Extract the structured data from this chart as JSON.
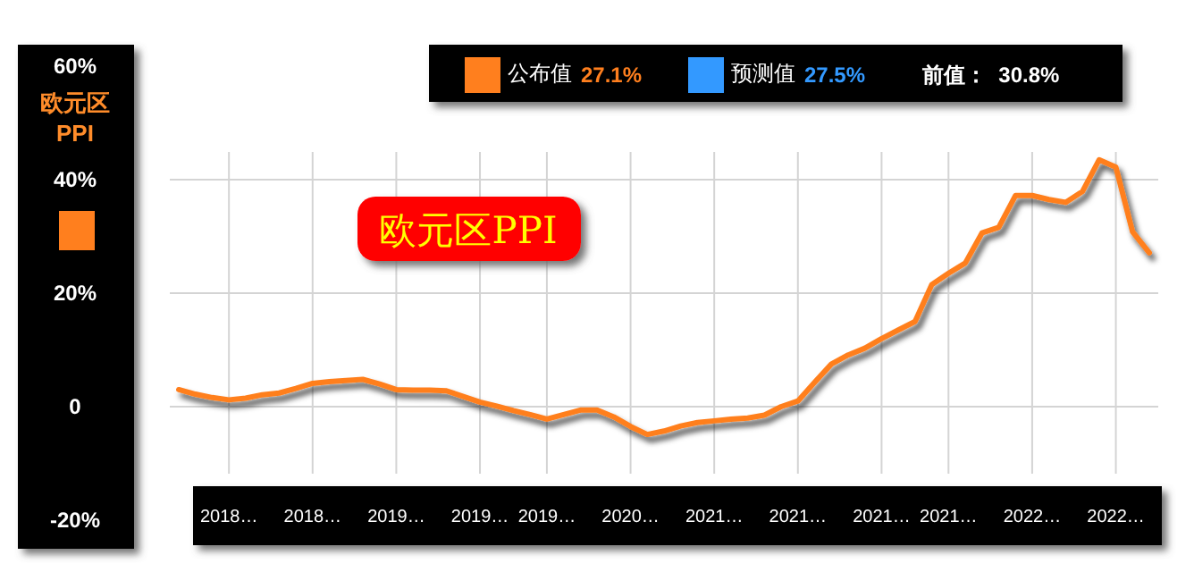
{
  "chart_data": {
    "type": "line",
    "title": "欧元区PPI",
    "ylabel": "欧元区 PPI",
    "categories": [
      null,
      null,
      null,
      "2018…",
      null,
      null,
      null,
      null,
      "2018…",
      null,
      null,
      null,
      null,
      "2019…",
      null,
      null,
      null,
      null,
      "2019…",
      null,
      null,
      null,
      "2019…",
      null,
      null,
      null,
      null,
      "2020…",
      null,
      null,
      null,
      null,
      "2021…",
      null,
      null,
      null,
      null,
      "2021…",
      null,
      null,
      null,
      null,
      "2021…",
      null,
      null,
      null,
      "2021…",
      null,
      null,
      null,
      null,
      "2022…",
      null,
      null,
      null,
      null,
      "2022…",
      null,
      null
    ],
    "series": [
      {
        "name": "公布值",
        "color": "#ff7f1e",
        "values": [
          3.0,
          2.2,
          1.6,
          1.2,
          1.5,
          2.1,
          2.4,
          3.2,
          4.1,
          4.4,
          4.6,
          4.8,
          4.0,
          3.0,
          2.9,
          2.9,
          2.8,
          1.8,
          0.8,
          0.1,
          -0.7,
          -1.4,
          -2.2,
          -1.4,
          -0.6,
          -0.6,
          -1.8,
          -3.5,
          -4.9,
          -4.3,
          -3.4,
          -2.8,
          -2.5,
          -2.2,
          -2.0,
          -1.5,
          0.0,
          1.0,
          4.3,
          7.5,
          9.1,
          10.3,
          12.0,
          13.5,
          15.0,
          21.5,
          23.5,
          25.3,
          30.6,
          31.6,
          37.2,
          37.2,
          36.5,
          36.0,
          37.9,
          43.5,
          42.2,
          30.8,
          27.1
        ]
      },
      {
        "name": "预测值",
        "color": "#3399ff",
        "values": [
          null,
          null,
          null,
          null,
          null,
          null,
          null,
          null,
          null,
          null,
          null,
          null,
          null,
          null,
          null,
          null,
          null,
          null,
          null,
          null,
          null,
          null,
          null,
          null,
          null,
          null,
          null,
          null,
          null,
          null,
          null,
          null,
          null,
          null,
          null,
          null,
          null,
          null,
          null,
          null,
          null,
          null,
          null,
          null,
          null,
          null,
          null,
          null,
          null,
          null,
          null,
          null,
          null,
          null,
          null,
          null,
          null,
          null,
          null
        ]
      }
    ],
    "ylim": [
      -20,
      60
    ],
    "yticks": [
      {
        "value": 60,
        "label": "60%"
      },
      {
        "value": 40,
        "label": "40%"
      },
      {
        "value": 20,
        "label": "20%"
      },
      0,
      {
        "value": -20,
        "label": "-20%"
      }
    ],
    "grid": true,
    "legend": "top",
    "annotations": [
      "27.1%",
      "27.5%",
      "前值：  30.8%"
    ]
  }
}
